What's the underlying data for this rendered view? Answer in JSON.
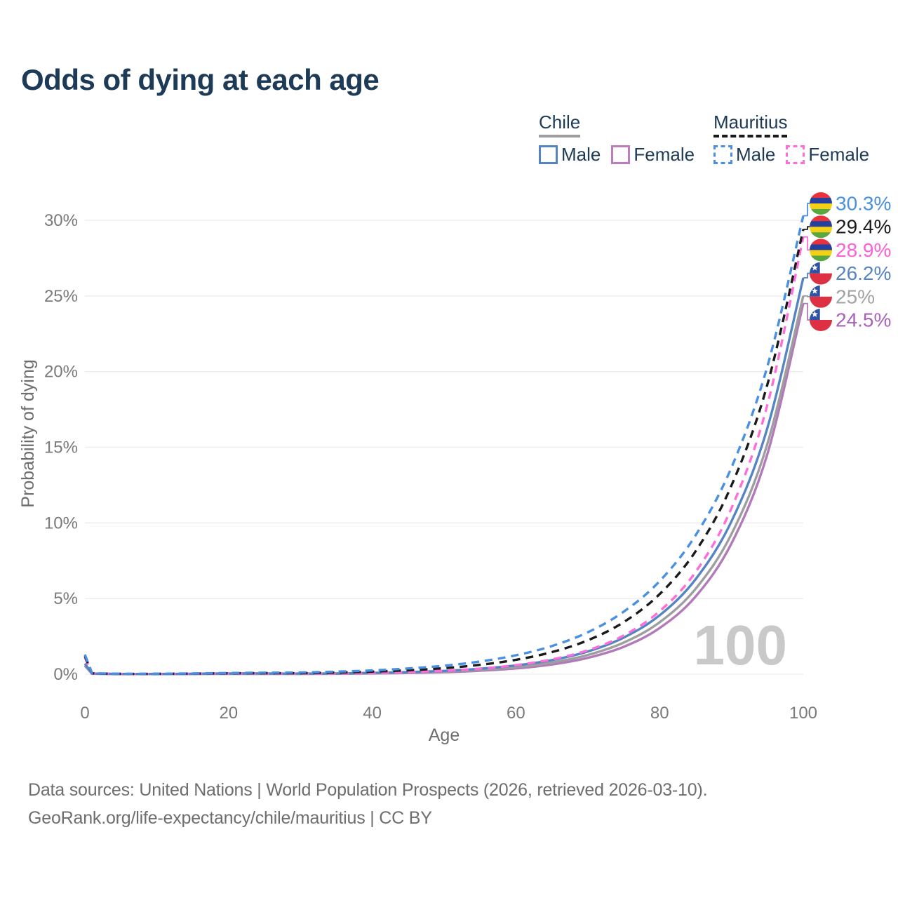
{
  "title": "Odds of dying at each age",
  "legend": {
    "groups": [
      {
        "name": "Chile",
        "underline_style": "solid",
        "underline_color": "#9e9e9e",
        "items": [
          {
            "label": "Male",
            "color": "#5584c4",
            "dash": false
          },
          {
            "label": "Female",
            "color": "#bd7cbc",
            "dash": false
          }
        ]
      },
      {
        "name": "Mauritius",
        "underline_style": "dashed",
        "underline_color": "#1a1a1a",
        "items": [
          {
            "label": "Male",
            "color": "#4a90e2",
            "dash": true
          },
          {
            "label": "Female",
            "color": "#ff6ed8",
            "dash": true
          }
        ]
      }
    ]
  },
  "axes": {
    "y": {
      "title": "Probability of dying",
      "tick_labels": [
        "0%",
        "5%",
        "10%",
        "15%",
        "20%",
        "25%",
        "30%"
      ],
      "tick_values": [
        0,
        5,
        10,
        15,
        20,
        25,
        30
      ]
    },
    "x": {
      "title": "Age",
      "tick_values": [
        0,
        20,
        40,
        60,
        80,
        100
      ]
    }
  },
  "watermark": "100",
  "footer": {
    "line1": "Data sources: United Nations | World Population Prospects (2026, retrieved 2026-03-10).",
    "line2": "GeoRank.org/life-expectancy/chile/mauritius | CC BY"
  },
  "chart_data": {
    "type": "line",
    "title": "Odds of dying at each age",
    "xlabel": "Age",
    "ylabel": "Probability of dying",
    "x_range": [
      0,
      100
    ],
    "y_range_percent": [
      0,
      30
    ],
    "grid": "horizontal",
    "ages": [
      0,
      1,
      5,
      10,
      15,
      20,
      25,
      30,
      35,
      40,
      45,
      50,
      55,
      60,
      65,
      70,
      75,
      80,
      85,
      90,
      95,
      100
    ],
    "series": [
      {
        "id": "mauritius-male",
        "name": "Mauritius Male",
        "country": "Mauritius",
        "sex": "male",
        "color": "#4a90e2",
        "dash": true,
        "flag": "mauritius",
        "end_value_percent": 30.3,
        "end_label": "30.3%",
        "end_label_color": "#4a90e2",
        "values_percent": [
          1.3,
          0.06,
          0.03,
          0.03,
          0.05,
          0.08,
          0.1,
          0.11,
          0.17,
          0.25,
          0.38,
          0.56,
          0.84,
          1.25,
          1.86,
          2.77,
          4.13,
          6.15,
          9.17,
          13.66,
          20.34,
          30.3
        ]
      },
      {
        "id": "mauritius-both",
        "name": "Mauritius Both sexes",
        "country": "Mauritius",
        "sex": "both",
        "color": "#1a1a1a",
        "dash": true,
        "flag": "mauritius",
        "end_value_percent": 29.4,
        "end_label": "29.4%",
        "end_label_color": "#1a1a1a",
        "values_percent": [
          1.2,
          0.055,
          0.025,
          0.025,
          0.04,
          0.06,
          0.07,
          0.07,
          0.11,
          0.17,
          0.26,
          0.4,
          0.62,
          0.95,
          1.46,
          2.24,
          3.44,
          5.29,
          8.12,
          12.47,
          19.14,
          29.4
        ]
      },
      {
        "id": "mauritius-female",
        "name": "Mauritius Female",
        "country": "Mauritius",
        "sex": "female",
        "color": "#ff6ed8",
        "dash": true,
        "flag": "mauritius",
        "end_value_percent": 28.9,
        "end_label": "28.9%",
        "end_label_color": "#ff5fd7",
        "values_percent": [
          1.1,
          0.05,
          0.02,
          0.02,
          0.03,
          0.04,
          0.04,
          0.04,
          0.05,
          0.09,
          0.14,
          0.23,
          0.37,
          0.6,
          0.98,
          1.58,
          2.56,
          4.16,
          6.75,
          10.97,
          17.8,
          28.9
        ]
      },
      {
        "id": "chile-male",
        "name": "Chile Male",
        "country": "Chile",
        "sex": "male",
        "color": "#5584c4",
        "dash": false,
        "flag": "chile",
        "end_value_percent": 26.2,
        "end_label": "26.2%",
        "end_label_color": "#5584c4",
        "values_percent": [
          0.7,
          0.04,
          0.015,
          0.015,
          0.03,
          0.05,
          0.05,
          0.04,
          0.05,
          0.09,
          0.14,
          0.22,
          0.36,
          0.58,
          0.93,
          1.5,
          2.42,
          3.89,
          6.27,
          10.1,
          16.27,
          26.2
        ]
      },
      {
        "id": "chile-both",
        "name": "Chile Both sexes",
        "country": "Chile",
        "sex": "both",
        "color": "#9e9e9e",
        "dash": false,
        "flag": "chile",
        "end_value_percent": 25.0,
        "end_label": "25%",
        "end_label_color": "#a3a3a3",
        "values_percent": [
          0.6,
          0.035,
          0.012,
          0.012,
          0.02,
          0.03,
          0.03,
          0.03,
          0.04,
          0.07,
          0.11,
          0.18,
          0.29,
          0.47,
          0.77,
          1.27,
          2.09,
          3.43,
          5.64,
          9.26,
          15.22,
          25.0
        ]
      },
      {
        "id": "chile-female",
        "name": "Chile Female",
        "country": "Chile",
        "sex": "female",
        "color": "#b27ab8",
        "dash": false,
        "flag": "chile",
        "end_value_percent": 24.5,
        "end_label": "24.5%",
        "end_label_color": "#a863b8",
        "values_percent": [
          0.55,
          0.03,
          0.01,
          0.01,
          0.015,
          0.02,
          0.02,
          0.02,
          0.03,
          0.05,
          0.08,
          0.13,
          0.23,
          0.38,
          0.64,
          1.08,
          1.81,
          3.05,
          5.13,
          8.64,
          14.55,
          24.5
        ]
      }
    ],
    "flag_colors": {
      "mauritius": [
        "#e8333f",
        "#24409f",
        "#f5d018",
        "#57a83e"
      ],
      "chile": {
        "blue": "#2d53a8",
        "white": "#ffffff",
        "red": "#dd3043",
        "star": "#ffffff"
      }
    }
  }
}
